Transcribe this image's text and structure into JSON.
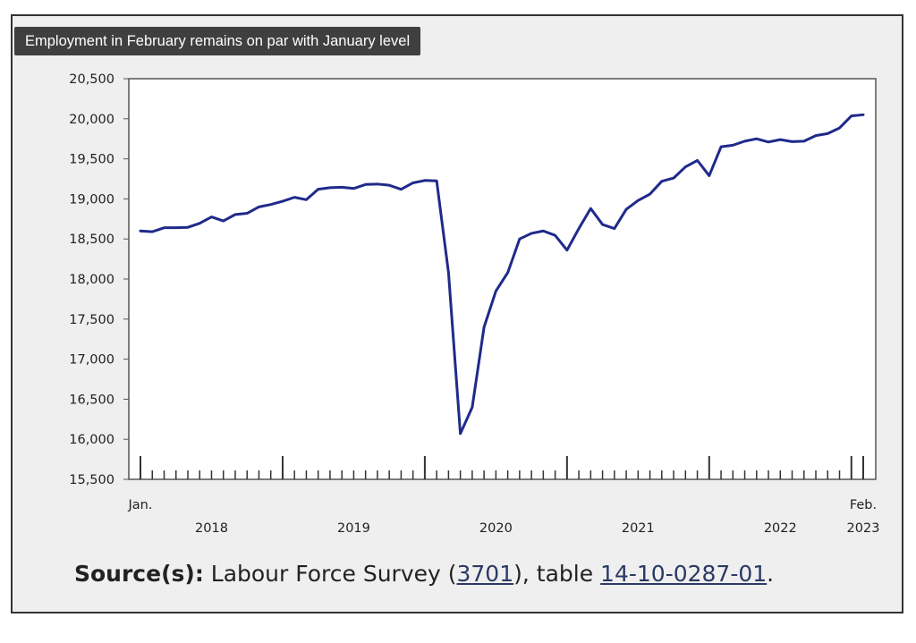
{
  "title": "Employment in February remains on par with January level",
  "source": {
    "label": "Source(s):",
    "text_before": "Labour Force Survey (",
    "link1": "3701",
    "text_middle": "), table ",
    "link2": "14-10-0287-01",
    "text_after": "."
  },
  "colors": {
    "line": "#1f2a8a",
    "panel": "#efefef",
    "title_bg": "#3f3f3f"
  },
  "chart_data": {
    "type": "line",
    "title": "Employment in February remains on par with January level",
    "xlabel": "",
    "ylabel": "",
    "ylim": [
      15500,
      20500
    ],
    "yticks": [
      15500,
      16000,
      16500,
      17000,
      17500,
      18000,
      18500,
      19000,
      19500,
      20000,
      20500
    ],
    "ytick_labels": [
      "15,500",
      "16,000",
      "16,500",
      "17,000",
      "17,500",
      "18,000",
      "18,500",
      "19,000",
      "19,500",
      "20,000",
      "20,500"
    ],
    "x_start": "2018-01",
    "x_end": "2023-02",
    "x_month_labels": [
      {
        "text": "Jan.",
        "month": "2018-01"
      },
      {
        "text": "Feb.",
        "month": "2023-02"
      }
    ],
    "x_year_labels": [
      {
        "text": "2018",
        "month": "2018-07"
      },
      {
        "text": "2019",
        "month": "2019-07"
      },
      {
        "text": "2020",
        "month": "2020-07"
      },
      {
        "text": "2021",
        "month": "2021-07"
      },
      {
        "text": "2022",
        "month": "2022-07"
      },
      {
        "text": "2023",
        "month": "2023-02"
      }
    ],
    "grid": false,
    "series": [
      {
        "values": [
          18600,
          18590,
          18640,
          18640,
          18645,
          18695,
          18775,
          18725,
          18805,
          18820,
          18900,
          18930,
          18970,
          19020,
          18990,
          19120,
          19140,
          19145,
          19130,
          19180,
          19185,
          19170,
          19120,
          19200,
          19230,
          19225,
          18080,
          16070,
          16400,
          17400,
          17850,
          18080,
          18500,
          18570,
          18600,
          18545,
          18360,
          18630,
          18880,
          18680,
          18630,
          18870,
          18980,
          19060,
          19220,
          19260,
          19400,
          19480,
          19290,
          19650,
          19670,
          19720,
          19750,
          19710,
          19740,
          19715,
          19720,
          19790,
          19815,
          19885,
          20035,
          20050
        ]
      }
    ]
  }
}
